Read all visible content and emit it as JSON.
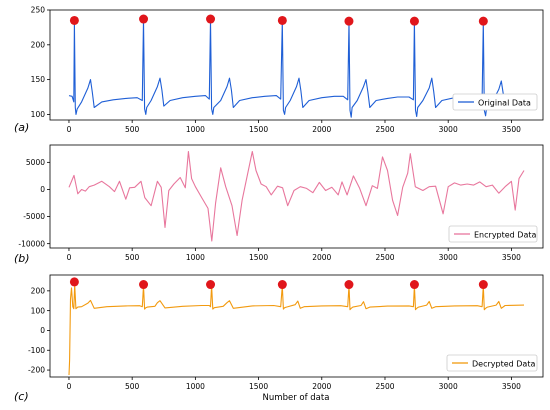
{
  "chart_data": [
    {
      "type": "line",
      "panel_label": "(a)",
      "xlabel": "",
      "ylabel": "",
      "xlim": [
        -150,
        3750
      ],
      "ylim": [
        92,
        250
      ],
      "xticks": [
        0,
        500,
        1000,
        1500,
        2000,
        2500,
        3000,
        3500
      ],
      "yticks": [
        100,
        150,
        200,
        250
      ],
      "legend": "lower-right",
      "series": [
        {
          "name": "Original Data",
          "color": "#1f5fd6",
          "x": [
            0,
            25,
            38,
            43,
            50,
            56,
            65,
            100,
            150,
            170,
            185,
            200,
            260,
            350,
            450,
            540,
            580,
            590,
            598,
            608,
            615,
            650,
            700,
            720,
            735,
            750,
            800,
            900,
            1000,
            1080,
            1110,
            1120,
            1128,
            1138,
            1146,
            1200,
            1250,
            1270,
            1285,
            1300,
            1350,
            1450,
            1550,
            1640,
            1675,
            1688,
            1696,
            1706,
            1714,
            1750,
            1800,
            1820,
            1835,
            1850,
            1900,
            2000,
            2100,
            2170,
            2205,
            2215,
            2223,
            2233,
            2240,
            2280,
            2330,
            2350,
            2365,
            2380,
            2430,
            2520,
            2600,
            2690,
            2725,
            2733,
            2741,
            2751,
            2759,
            2800,
            2850,
            2870,
            2885,
            2900,
            2950,
            3050,
            3150,
            3230,
            3268,
            3278,
            3286,
            3296,
            3304,
            3350,
            3400,
            3420,
            3435,
            3450,
            3500,
            3600
          ],
          "y": [
            127,
            126,
            118,
            232,
            110,
            100,
            108,
            118,
            138,
            150,
            132,
            110,
            118,
            121,
            123,
            124,
            120,
            236,
            108,
            100,
            110,
            120,
            140,
            152,
            135,
            112,
            120,
            124,
            126,
            127,
            122,
            236,
            108,
            100,
            110,
            120,
            140,
            152,
            135,
            110,
            120,
            124,
            126,
            127,
            122,
            234,
            106,
            100,
            110,
            120,
            140,
            152,
            134,
            110,
            120,
            124,
            126,
            126,
            121,
            233,
            106,
            96,
            110,
            120,
            140,
            150,
            132,
            110,
            120,
            123,
            125,
            125,
            121,
            233,
            106,
            97,
            110,
            120,
            138,
            152,
            133,
            110,
            120,
            124,
            125,
            125,
            120,
            233,
            106,
            98,
            110,
            118,
            136,
            148,
            130,
            112,
            120,
            126
          ]
        }
      ],
      "peaks": {
        "name": "peak markers",
        "color": "#e0161b",
        "x": [
          43,
          590,
          1120,
          1688,
          2215,
          2733,
          3278
        ],
        "y": [
          235,
          237,
          237,
          235,
          234,
          234,
          234
        ]
      }
    },
    {
      "type": "line",
      "panel_label": "(b)",
      "xlabel": "",
      "ylabel": "",
      "xlim": [
        -150,
        3750
      ],
      "ylim": [
        -10800,
        8200
      ],
      "xticks": [
        0,
        500,
        1000,
        1500,
        2000,
        2500,
        3000,
        3500
      ],
      "yticks": [
        -10000,
        -5000,
        0,
        5000
      ],
      "legend": "lower-right",
      "series": [
        {
          "name": "Encrypted Data",
          "color": "#e8779d",
          "x": [
            0,
            40,
            70,
            100,
            130,
            160,
            200,
            260,
            320,
            360,
            400,
            450,
            480,
            520,
            570,
            600,
            650,
            700,
            730,
            760,
            790,
            830,
            880,
            920,
            945,
            970,
            1000,
            1050,
            1100,
            1130,
            1160,
            1200,
            1240,
            1290,
            1330,
            1370,
            1410,
            1450,
            1480,
            1520,
            1560,
            1600,
            1650,
            1690,
            1730,
            1780,
            1830,
            1880,
            1930,
            1980,
            2030,
            2080,
            2130,
            2160,
            2200,
            2250,
            2300,
            2350,
            2400,
            2440,
            2480,
            2520,
            2560,
            2600,
            2640,
            2680,
            2700,
            2740,
            2800,
            2850,
            2900,
            2960,
            3000,
            3050,
            3100,
            3150,
            3200,
            3250,
            3300,
            3350,
            3400,
            3450,
            3500,
            3530,
            3560,
            3600
          ],
          "y": [
            400,
            2600,
            -800,
            0,
            -300,
            500,
            800,
            1500,
            500,
            -400,
            1500,
            -1800,
            300,
            400,
            1500,
            -1500,
            -3000,
            1500,
            400,
            -7000,
            -200,
            1000,
            2200,
            300,
            7000,
            2000,
            500,
            -1500,
            -3500,
            -9500,
            -2500,
            4000,
            500,
            -3000,
            -8500,
            -2000,
            2500,
            7000,
            3500,
            1000,
            500,
            -1000,
            600,
            300,
            -3000,
            -200,
            500,
            200,
            -600,
            1300,
            -200,
            400,
            -1000,
            1400,
            -1000,
            2500,
            200,
            -3000,
            700,
            200,
            6000,
            3500,
            -2000,
            -4800,
            400,
            3000,
            6600,
            500,
            -200,
            500,
            600,
            -4500,
            500,
            1200,
            800,
            1000,
            800,
            1400,
            500,
            800,
            -700,
            500,
            1500,
            -3800,
            2000,
            3500
          ]
        }
      ]
    },
    {
      "type": "line",
      "panel_label": "(c)",
      "xlabel": "Number of data",
      "ylabel": "",
      "xlim": [
        -150,
        3750
      ],
      "ylim": [
        -235,
        280
      ],
      "xticks": [
        0,
        500,
        1000,
        1500,
        2000,
        2500,
        3000,
        3500
      ],
      "yticks": [
        -200,
        -100,
        0,
        100,
        200
      ],
      "legend": "lower-right",
      "series": [
        {
          "name": "Decrypted Data",
          "color": "#f29a0f",
          "x": [
            0,
            5,
            12,
            20,
            30,
            38,
            45,
            55,
            70,
            100,
            150,
            170,
            200,
            300,
            450,
            560,
            580,
            590,
            598,
            608,
            620,
            680,
            700,
            720,
            760,
            900,
            1050,
            1110,
            1120,
            1128,
            1138,
            1150,
            1220,
            1250,
            1270,
            1300,
            1450,
            1620,
            1675,
            1688,
            1696,
            1706,
            1720,
            1790,
            1810,
            1830,
            1860,
            2000,
            2150,
            2205,
            2215,
            2223,
            2233,
            2245,
            2310,
            2330,
            2350,
            2380,
            2520,
            2690,
            2725,
            2733,
            2741,
            2751,
            2765,
            2830,
            2850,
            2870,
            2900,
            3050,
            3230,
            3268,
            3278,
            3286,
            3296,
            3310,
            3380,
            3400,
            3420,
            3450,
            3600
          ],
          "y": [
            -225,
            -150,
            160,
            215,
            120,
            110,
            230,
            110,
            118,
            120,
            138,
            152,
            112,
            120,
            124,
            125,
            120,
            225,
            108,
            115,
            118,
            122,
            140,
            150,
            114,
            122,
            126,
            126,
            120,
            225,
            108,
            115,
            122,
            140,
            150,
            112,
            124,
            126,
            120,
            225,
            108,
            115,
            118,
            130,
            148,
            112,
            120,
            124,
            125,
            120,
            225,
            105,
            112,
            118,
            126,
            145,
            110,
            118,
            123,
            124,
            120,
            225,
            105,
            112,
            118,
            128,
            146,
            112,
            120,
            124,
            125,
            120,
            225,
            105,
            112,
            118,
            128,
            146,
            112,
            126,
            128
          ]
        }
      ],
      "peaks": {
        "name": "peak markers",
        "color": "#e0161b",
        "x": [
          43,
          590,
          1120,
          1688,
          2215,
          2733,
          3278
        ],
        "y": [
          245,
          232,
          232,
          232,
          232,
          232,
          232
        ]
      }
    }
  ]
}
